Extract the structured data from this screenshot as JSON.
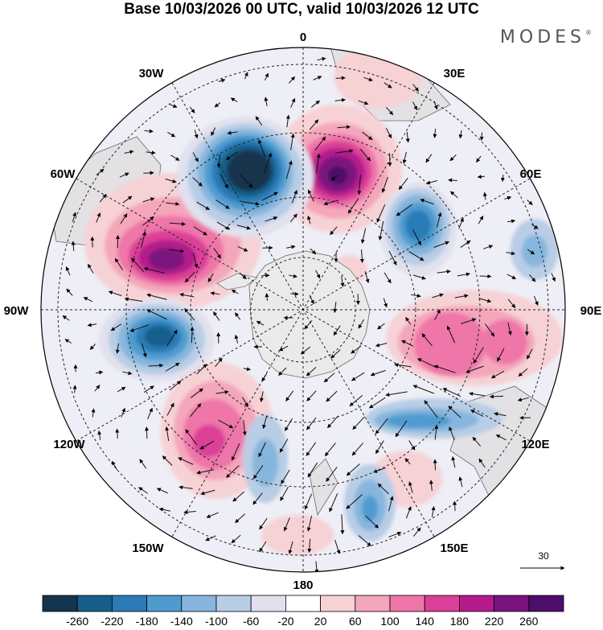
{
  "title": "Base 10/03/2026 00 UTC, valid 10/03/2026 12 UTC",
  "brand": "MODES",
  "brand_mark": "®",
  "map": {
    "projection": "south-polar-stereographic",
    "longitude_labels": {
      "top": "0",
      "top_right_1": "30E",
      "top_right_2": "60E",
      "right": "90E",
      "bottom_right_2": "120E",
      "bottom_right_1": "150E",
      "bottom": "180",
      "bottom_left_1": "150W",
      "bottom_left_2": "120W",
      "left": "90W",
      "top_left_2": "60W",
      "top_left_1": "30W"
    },
    "vector_reference": "30"
  },
  "colorbar": {
    "ticks": [
      "-260",
      "-220",
      "-180",
      "-140",
      "-100",
      "-60",
      "-20",
      "20",
      "60",
      "100",
      "140",
      "180",
      "220",
      "260"
    ],
    "colors": [
      "#15344e",
      "#185e8c",
      "#2b7bb7",
      "#4f9bcf",
      "#86b6dd",
      "#b8cde6",
      "#e1e1ee",
      "#ffffff",
      "#f6d2d5",
      "#f4a6bb",
      "#ee76a9",
      "#dc3f97",
      "#b31a8c",
      "#7a137d",
      "#4e0c6b"
    ]
  },
  "colors": {
    "land": "#e6e6e6",
    "coast": "#555555",
    "background": "#ffffff"
  }
}
